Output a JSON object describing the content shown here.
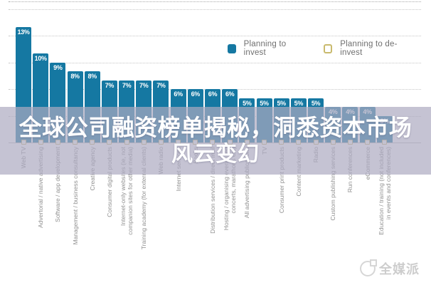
{
  "legend": {
    "invest_label": "Planning to invest",
    "deinvest_label": "Planning to de-invest"
  },
  "overlay": {
    "line1": "全球公司融资榜单揭秘，洞悉资本市场",
    "line2": "风云变幻"
  },
  "watermark": {
    "text": "全媒派"
  },
  "colors": {
    "invest_bar": "#1578a2",
    "deinvest_border": "#c9ba6e",
    "overlay_band": "rgba(173,169,192,0.70)",
    "axis_label_gray": "#8f8f8f"
  },
  "chart_data": {
    "type": "bar",
    "title": "",
    "xlabel": "",
    "ylabel": "",
    "ylim": [
      0,
      16
    ],
    "gridlines_at": [
      3,
      6,
      9,
      12,
      15
    ],
    "grid_style": "dotted horizontal, no y-axis tick labels",
    "legend_position": "top-right",
    "value_label_suffix": "%",
    "categories": [
      "Web TV",
      "Advertorial / native advertising",
      "Software / app development",
      "Management / business consultancy",
      "Creative agency",
      "Consumer digital products",
      "Internet-only websites (ie, not\ncompanion sites for other media)",
      "Training academy (for external clients)",
      "Web radio",
      "Internet services",
      "Books",
      "Distribution services / direct mail",
      "Hosting / organising events (eg\nconcerts, marathons etc)",
      "All advertising publications",
      "TV",
      "Consumer print products",
      "Content marketing",
      "Radio",
      "Custom publishing services",
      "Run conferences",
      "eCommerce",
      "Education / training (not included\nin events and conferences)"
    ],
    "series": [
      {
        "name": "Planning to invest",
        "color": "#1578a2",
        "values": [
          13,
          10,
          9,
          8,
          8,
          7,
          7,
          7,
          7,
          6,
          6,
          6,
          6,
          5,
          5,
          5,
          5,
          5,
          4,
          4,
          4,
          3
        ]
      },
      {
        "name": "Planning to de-invest",
        "border_color": "#c9ba6e",
        "values_readable": false,
        "shown_as": "small outlined squares at the baseline under each category"
      }
    ]
  }
}
